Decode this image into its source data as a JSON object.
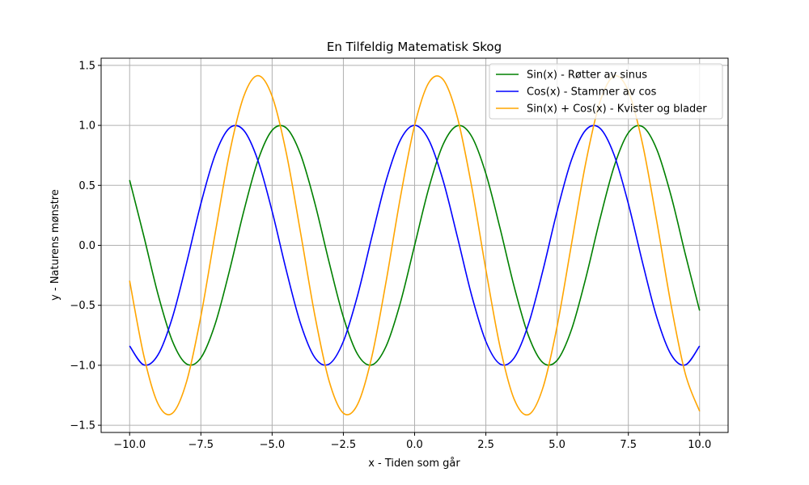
{
  "chart_data": {
    "type": "line",
    "title": "En Tilfeldig Matematisk Skog",
    "xlabel": "x - Tiden som går",
    "ylabel": "y - Naturens mønstre",
    "xlim": [
      -11,
      11
    ],
    "ylim": [
      -1.56,
      1.56
    ],
    "grid": true,
    "legend_position": "top-right",
    "x_ticks": [
      {
        "value": -10,
        "label": "−10.0"
      },
      {
        "value": -7.5,
        "label": "−7.5"
      },
      {
        "value": -5,
        "label": "−5.0"
      },
      {
        "value": -2.5,
        "label": "−2.5"
      },
      {
        "value": 0,
        "label": "0.0"
      },
      {
        "value": 2.5,
        "label": "2.5"
      },
      {
        "value": 5,
        "label": "5.0"
      },
      {
        "value": 7.5,
        "label": "7.5"
      },
      {
        "value": 10,
        "label": "10.0"
      }
    ],
    "y_ticks": [
      {
        "value": -1.5,
        "label": "−1.5"
      },
      {
        "value": -1.0,
        "label": "−1.0"
      },
      {
        "value": -0.5,
        "label": "−0.5"
      },
      {
        "value": 0.0,
        "label": "0.0"
      },
      {
        "value": 0.5,
        "label": "0.5"
      },
      {
        "value": 1.0,
        "label": "1.0"
      },
      {
        "value": 1.5,
        "label": "1.5"
      }
    ],
    "x": [
      -10,
      -9.5,
      -9,
      -8.5,
      -8,
      -7.5,
      -7,
      -6.5,
      -6,
      -5.5,
      -5,
      -4.5,
      -4,
      -3.5,
      -3,
      -2.5,
      -2,
      -1.5,
      -1,
      -0.5,
      0,
      0.5,
      1,
      1.5,
      2,
      2.5,
      3,
      3.5,
      4,
      4.5,
      5,
      5.5,
      6,
      6.5,
      7,
      7.5,
      8,
      8.5,
      9,
      9.5,
      10
    ],
    "series": [
      {
        "name": "Sin(x) - Røtter av sinus",
        "color": "#008000",
        "values": [
          0.544,
          0.075,
          -0.412,
          -0.798,
          -0.989,
          -0.938,
          -0.657,
          -0.215,
          0.279,
          0.706,
          0.959,
          0.978,
          0.757,
          0.351,
          -0.141,
          -0.598,
          -0.909,
          -0.997,
          -0.841,
          -0.479,
          0.0,
          0.479,
          0.841,
          0.997,
          0.909,
          0.598,
          0.141,
          -0.351,
          -0.757,
          -0.978,
          -0.959,
          -0.706,
          -0.279,
          0.215,
          0.657,
          0.938,
          0.989,
          0.798,
          0.412,
          -0.075,
          -0.544
        ]
      },
      {
        "name": "Cos(x) - Stammer av cos",
        "color": "#0000ff",
        "values": [
          -0.839,
          -0.997,
          -0.911,
          -0.602,
          -0.146,
          0.347,
          0.754,
          0.977,
          0.96,
          0.709,
          0.284,
          -0.211,
          -0.654,
          -0.936,
          -0.99,
          -0.801,
          -0.416,
          0.071,
          0.54,
          0.878,
          1.0,
          0.878,
          0.54,
          0.071,
          -0.416,
          -0.801,
          -0.99,
          -0.936,
          -0.654,
          -0.211,
          0.284,
          0.709,
          0.96,
          0.977,
          0.754,
          0.347,
          -0.146,
          -0.602,
          -0.911,
          -0.997,
          -0.839
        ]
      },
      {
        "name": "Sin(x) + Cos(x) - Kvister og blader",
        "color": "#ffa500",
        "values": [
          -0.295,
          -0.922,
          -1.323,
          -1.4,
          -1.135,
          -0.591,
          0.097,
          0.762,
          1.239,
          1.415,
          1.243,
          0.767,
          0.103,
          -0.585,
          -1.131,
          -1.399,
          -1.325,
          -0.927,
          -0.301,
          0.399,
          1.0,
          1.357,
          1.382,
          1.068,
          0.493,
          -0.203,
          -0.849,
          -1.287,
          -1.411,
          -1.189,
          -0.675,
          0.003,
          0.681,
          1.192,
          1.411,
          1.285,
          0.843,
          0.196,
          -0.499,
          -1.072,
          -1.383
        ]
      }
    ]
  }
}
